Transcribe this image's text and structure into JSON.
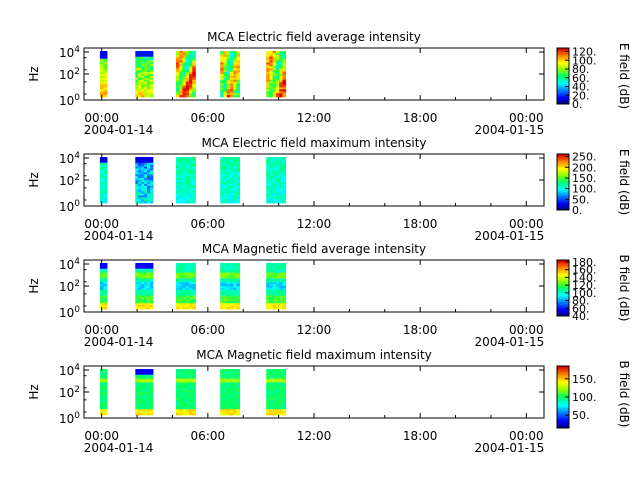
{
  "chart_data": [
    {
      "type": "heatmap",
      "title": "MCA  Electric field average intensity",
      "ylabel": "Hz",
      "y_scale": "log",
      "y_ticks": [
        {
          "base": "10",
          "exp": "0"
        },
        {
          "base": "10",
          "exp": "2"
        },
        {
          "base": "10",
          "exp": "4"
        }
      ],
      "x_ticks": [
        "00:00",
        "06:00",
        "12:00",
        "18:00",
        "00:00"
      ],
      "x_dates": [
        "2004-01-14",
        "2004-01-15"
      ],
      "x_range_hours": [
        -1,
        25
      ],
      "colorbar": {
        "label": "E field (dB)",
        "ticks": [
          "0.",
          "20.",
          "40.",
          "60.",
          "80.",
          "100.",
          "120."
        ],
        "range": [
          0,
          128
        ]
      },
      "data_blocks_hours": [
        [
          -0.1,
          0.3
        ],
        [
          1.9,
          2.9
        ],
        [
          4.2,
          5.3
        ],
        [
          6.7,
          7.8
        ],
        [
          9.3,
          10.4
        ]
      ],
      "profile": "e_avg"
    },
    {
      "type": "heatmap",
      "title": "MCA  Electric field maximum intensity",
      "ylabel": "Hz",
      "y_scale": "log",
      "y_ticks": [
        {
          "base": "10",
          "exp": "0"
        },
        {
          "base": "10",
          "exp": "2"
        },
        {
          "base": "10",
          "exp": "4"
        }
      ],
      "x_ticks": [
        "00:00",
        "06:00",
        "12:00",
        "18:00",
        "00:00"
      ],
      "x_dates": [
        "2004-01-14",
        "2004-01-15"
      ],
      "x_range_hours": [
        -1,
        25
      ],
      "colorbar": {
        "label": "E field (dB)",
        "ticks": [
          "0.",
          "50.",
          "100.",
          "150.",
          "200.",
          "250."
        ],
        "range": [
          0,
          262
        ]
      },
      "data_blocks_hours": [
        [
          -0.1,
          0.3
        ],
        [
          1.9,
          2.9
        ],
        [
          4.2,
          5.3
        ],
        [
          6.7,
          7.8
        ],
        [
          9.3,
          10.4
        ]
      ],
      "profile": "e_max"
    },
    {
      "type": "heatmap",
      "title": "MCA  Magnetic field average intensity",
      "ylabel": "Hz",
      "y_scale": "log",
      "y_ticks": [
        {
          "base": "10",
          "exp": "0"
        },
        {
          "base": "10",
          "exp": "2"
        },
        {
          "base": "10",
          "exp": "4"
        }
      ],
      "x_ticks": [
        "00:00",
        "06:00",
        "12:00",
        "18:00",
        "00:00"
      ],
      "x_dates": [
        "2004-01-14",
        "2004-01-15"
      ],
      "x_range_hours": [
        -1,
        25
      ],
      "colorbar": {
        "label": "B field (dB)",
        "ticks": [
          "40.",
          "60.",
          "80.",
          "100.",
          "120.",
          "140.",
          "160.",
          "180."
        ],
        "range": [
          40,
          185
        ]
      },
      "data_blocks_hours": [
        [
          -0.1,
          0.3
        ],
        [
          1.9,
          2.9
        ],
        [
          4.2,
          5.3
        ],
        [
          6.7,
          7.8
        ],
        [
          9.3,
          10.4
        ]
      ],
      "profile": "b_avg"
    },
    {
      "type": "heatmap",
      "title": "MCA  Magnetic field maximum intensity",
      "ylabel": "Hz",
      "y_scale": "log",
      "y_ticks": [
        {
          "base": "10",
          "exp": "0"
        },
        {
          "base": "10",
          "exp": "2"
        },
        {
          "base": "10",
          "exp": "4"
        }
      ],
      "x_ticks": [
        "00:00",
        "06:00",
        "12:00",
        "18:00",
        "00:00"
      ],
      "x_dates": [
        "2004-01-14",
        "2004-01-15"
      ],
      "x_range_hours": [
        -1,
        25
      ],
      "colorbar": {
        "label": "B field (dB)",
        "ticks": [
          "50.",
          "100.",
          "150."
        ],
        "range": [
          15,
          185
        ]
      },
      "data_blocks_hours": [
        [
          -0.1,
          0.3
        ],
        [
          1.9,
          2.9
        ],
        [
          4.2,
          5.3
        ],
        [
          6.7,
          7.8
        ],
        [
          9.3,
          10.4
        ]
      ],
      "profile": "b_max"
    }
  ]
}
